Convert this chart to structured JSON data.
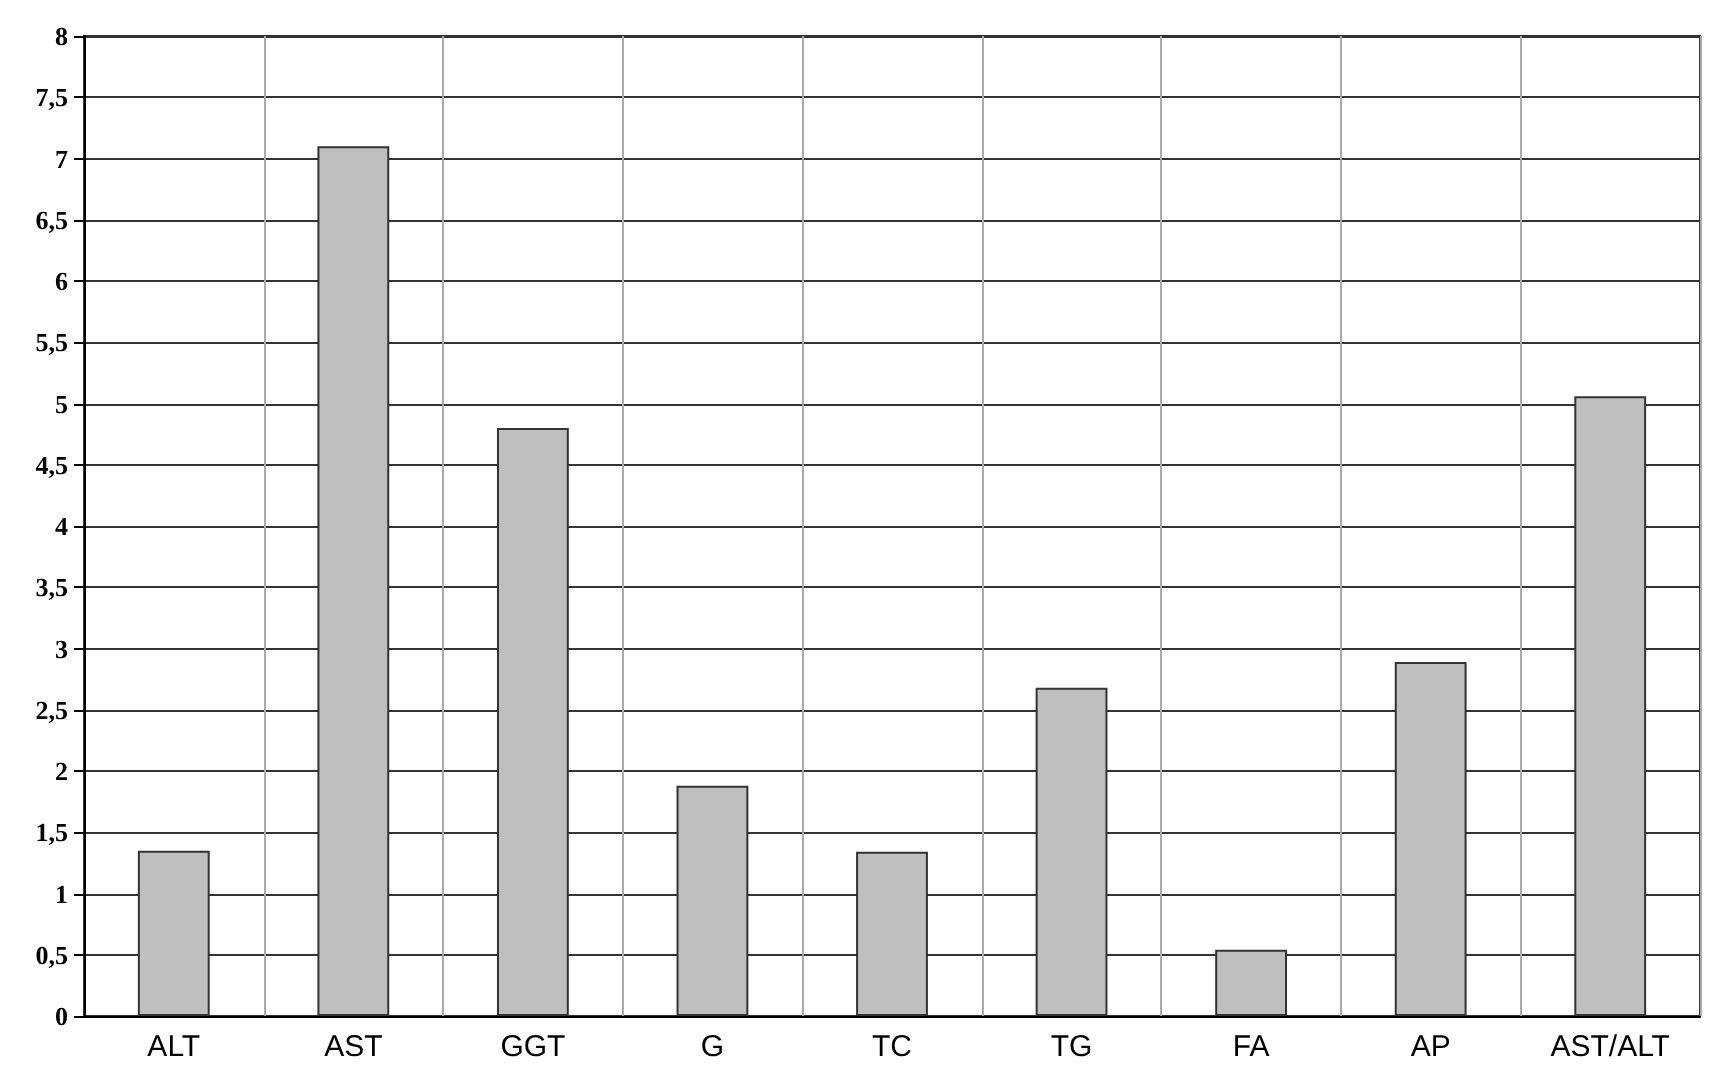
{
  "chart_data": {
    "type": "bar",
    "categories": [
      "ALT",
      "AST",
      "GGT",
      "G",
      "TC",
      "TG",
      "FA",
      "AP",
      "AST/ALT"
    ],
    "values": [
      1.35,
      7.1,
      4.8,
      1.88,
      1.34,
      2.68,
      0.54,
      2.89,
      5.06
    ],
    "color": "#bfbfbf",
    "ylim": [
      0,
      8
    ],
    "yticks": [
      0,
      {
        "value": 0.5,
        "label": "0,5"
      },
      1,
      {
        "value": 1.5,
        "label": "1,5"
      },
      2,
      {
        "value": 2.5,
        "label": "2,5"
      },
      3,
      {
        "value": 3.5,
        "label": "3,5"
      },
      4,
      {
        "value": 4.5,
        "label": "4,5"
      },
      5,
      {
        "value": 5.5,
        "label": "5,5"
      },
      6,
      {
        "value": 6.5,
        "label": "6,5"
      },
      7,
      {
        "value": 7.5,
        "label": "7,5"
      },
      8
    ],
    "grid": true
  }
}
